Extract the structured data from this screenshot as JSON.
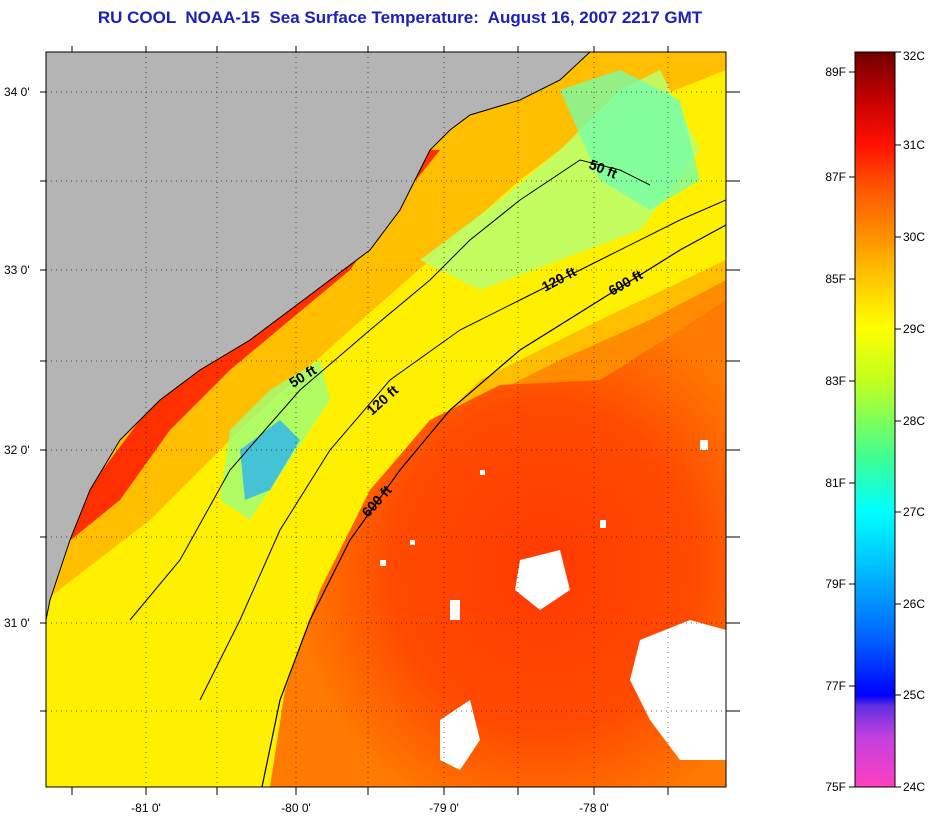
{
  "title": "RU COOL  NOAA-15  Sea Surface Temperature:  August 16, 2007 2217 GMT",
  "map": {
    "lat_ticks": [
      "34 0'",
      "33 0'",
      "32 0'",
      "31 0'"
    ],
    "lon_ticks": [
      "-81 0'",
      "-80 0'",
      "-79 0'",
      "-78 0'"
    ],
    "contour_labels": [
      "50 ft",
      "120 ft",
      "600 ft",
      "50 ft",
      "120 ft",
      "600 ft"
    ],
    "colors": {
      "land": "#b4b4b4",
      "coast": "#000000"
    }
  },
  "colorbar": {
    "fahrenheit_labels": [
      "89F",
      "87F",
      "85F",
      "83F",
      "81F",
      "79F",
      "77F",
      "75F"
    ],
    "celsius_labels": [
      "32C",
      "31C",
      "30C",
      "29C",
      "28C",
      "27C",
      "26C",
      "25C",
      "24C"
    ],
    "colors": [
      "#ff40c0",
      "#8a2be2",
      "#0000ff",
      "#0080ff",
      "#00ffff",
      "#40ff90",
      "#c0ff20",
      "#ffff00",
      "#ffc000",
      "#ff8000",
      "#ff3000",
      "#e00000",
      "#800000"
    ]
  }
}
